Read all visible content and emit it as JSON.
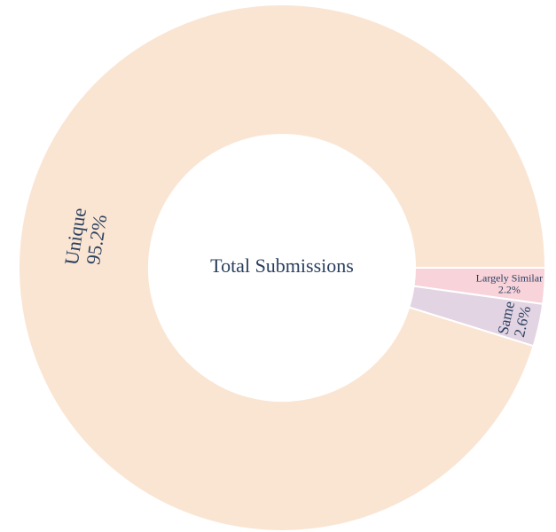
{
  "chart_data": {
    "type": "donut",
    "center_label": "Total Submissions",
    "categories": [
      "Largely Similar",
      "Same",
      "Unique"
    ],
    "values": [
      2.2,
      2.6,
      95.2
    ],
    "value_labels": [
      "2.2%",
      "2.6%",
      "95.2%"
    ],
    "colors": [
      "#f8d3da",
      "#e3d4e3",
      "#fae5d3"
    ]
  }
}
